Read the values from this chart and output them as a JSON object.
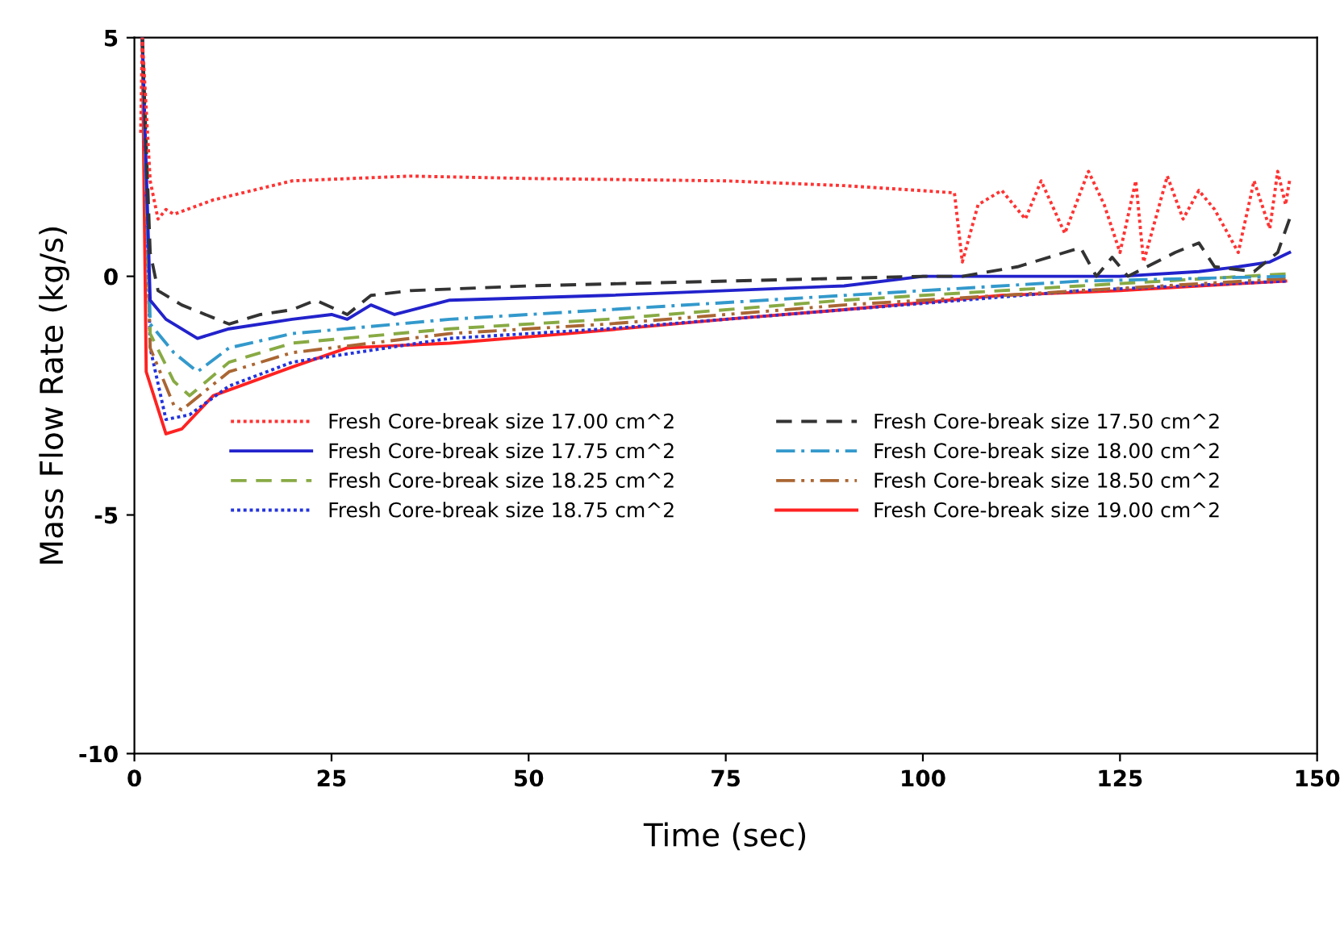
{
  "chart_data": {
    "type": "line",
    "xlabel": "Time (sec)",
    "ylabel": "Mass Flow Rate (kg/s)",
    "xlim": [
      0,
      150
    ],
    "xticks": [
      0,
      25,
      50,
      75,
      100,
      125,
      150
    ],
    "ylim": [
      -10,
      5
    ],
    "yticks": [
      -10,
      -5,
      0,
      5
    ],
    "grid": false,
    "legend": "center",
    "marker": "none",
    "series": [
      {
        "name": "Fresh Core-break size 17.00 cm^2",
        "color": "#ff3333",
        "line_style": "dotted",
        "x": [
          0.8,
          1,
          2,
          3,
          4,
          5,
          10,
          15,
          20,
          35,
          50,
          75,
          90,
          104,
          105,
          107,
          110,
          113,
          115,
          118,
          121,
          123,
          125,
          127,
          128,
          131,
          133,
          135,
          137,
          140,
          142,
          144,
          145,
          146,
          146.5
        ],
        "values": [
          3,
          5,
          2,
          1.2,
          1.4,
          1.3,
          1.6,
          1.8,
          2.0,
          2.1,
          2.05,
          2.0,
          1.9,
          1.75,
          0.3,
          1.5,
          1.8,
          1.2,
          2.0,
          0.9,
          2.2,
          1.5,
          0.5,
          2.0,
          0.3,
          2.1,
          1.2,
          1.8,
          1.4,
          0.5,
          2.0,
          1.0,
          2.2,
          1.5,
          2.0
        ]
      },
      {
        "name": "Fresh Core-break size 17.50 cm^2",
        "color": "#333333",
        "line_style": "dashed",
        "x": [
          1,
          2,
          3,
          6,
          12,
          16,
          20,
          23,
          27,
          30,
          35,
          50,
          75,
          100,
          105,
          112,
          120,
          122,
          124,
          126,
          132,
          135,
          137,
          142,
          145,
          146.5
        ],
        "values": [
          5,
          0.5,
          -0.3,
          -0.6,
          -1.0,
          -0.8,
          -0.7,
          -0.5,
          -0.8,
          -0.4,
          -0.3,
          -0.2,
          -0.1,
          0.0,
          0.0,
          0.2,
          0.6,
          0.0,
          0.4,
          0.0,
          0.5,
          0.7,
          0.2,
          0.1,
          0.5,
          1.2
        ]
      },
      {
        "name": "Fresh Core-break size 17.75 cm^2",
        "color": "#2222cc",
        "line_style": "solid",
        "x": [
          1,
          2,
          4,
          8,
          12,
          20,
          25,
          27,
          30,
          33,
          40,
          60,
          90,
          100,
          125,
          135,
          140,
          144,
          146.5
        ],
        "values": [
          5,
          -0.5,
          -0.9,
          -1.3,
          -1.1,
          -0.9,
          -0.8,
          -0.9,
          -0.6,
          -0.8,
          -0.5,
          -0.4,
          -0.2,
          0.0,
          0.0,
          0.1,
          0.2,
          0.3,
          0.5
        ]
      },
      {
        "name": "Fresh Core-break size 18.00 cm^2",
        "color": "#3399cc",
        "line_style": "dashdot",
        "x": [
          1,
          2,
          5,
          8,
          12,
          20,
          40,
          60,
          90,
          120,
          146
        ],
        "values": [
          5,
          -1.0,
          -1.6,
          -2.0,
          -1.5,
          -1.2,
          -0.9,
          -0.7,
          -0.4,
          -0.1,
          0.0
        ]
      },
      {
        "name": "Fresh Core-break size 18.25 cm^2",
        "color": "#88aa44",
        "line_style": "dashed",
        "x": [
          1,
          2,
          5,
          7,
          12,
          20,
          40,
          60,
          90,
          120,
          146
        ],
        "values": [
          5,
          -1.2,
          -2.2,
          -2.5,
          -1.8,
          -1.4,
          -1.1,
          -0.9,
          -0.5,
          -0.2,
          0.05
        ]
      },
      {
        "name": "Fresh Core-break size 18.50 cm^2",
        "color": "#aa6633",
        "line_style": "dashdotdot",
        "x": [
          1,
          2,
          5,
          6,
          12,
          20,
          40,
          60,
          90,
          120,
          146
        ],
        "values": [
          5,
          -1.5,
          -2.7,
          -2.8,
          -2.0,
          -1.6,
          -1.2,
          -1.0,
          -0.6,
          -0.3,
          -0.05
        ]
      },
      {
        "name": "Fresh Core-break size 18.75 cm^2",
        "color": "#2233dd",
        "line_style": "dotted",
        "x": [
          1,
          2,
          4,
          7,
          12,
          20,
          40,
          60,
          90,
          120,
          146
        ],
        "values": [
          5,
          -1.5,
          -3.0,
          -2.9,
          -2.3,
          -1.8,
          -1.3,
          -1.1,
          -0.7,
          -0.3,
          -0.1
        ]
      },
      {
        "name": "Fresh Core-break size 19.00 cm^2",
        "color": "#ff2222",
        "line_style": "solid",
        "x": [
          1,
          1.5,
          4,
          6,
          10,
          20,
          27,
          40,
          55,
          75,
          90,
          110,
          125,
          135,
          146
        ],
        "values": [
          5,
          -2.0,
          -3.3,
          -3.2,
          -2.5,
          -1.9,
          -1.5,
          -1.4,
          -1.2,
          -0.9,
          -0.7,
          -0.4,
          -0.3,
          -0.2,
          -0.1
        ]
      }
    ]
  }
}
